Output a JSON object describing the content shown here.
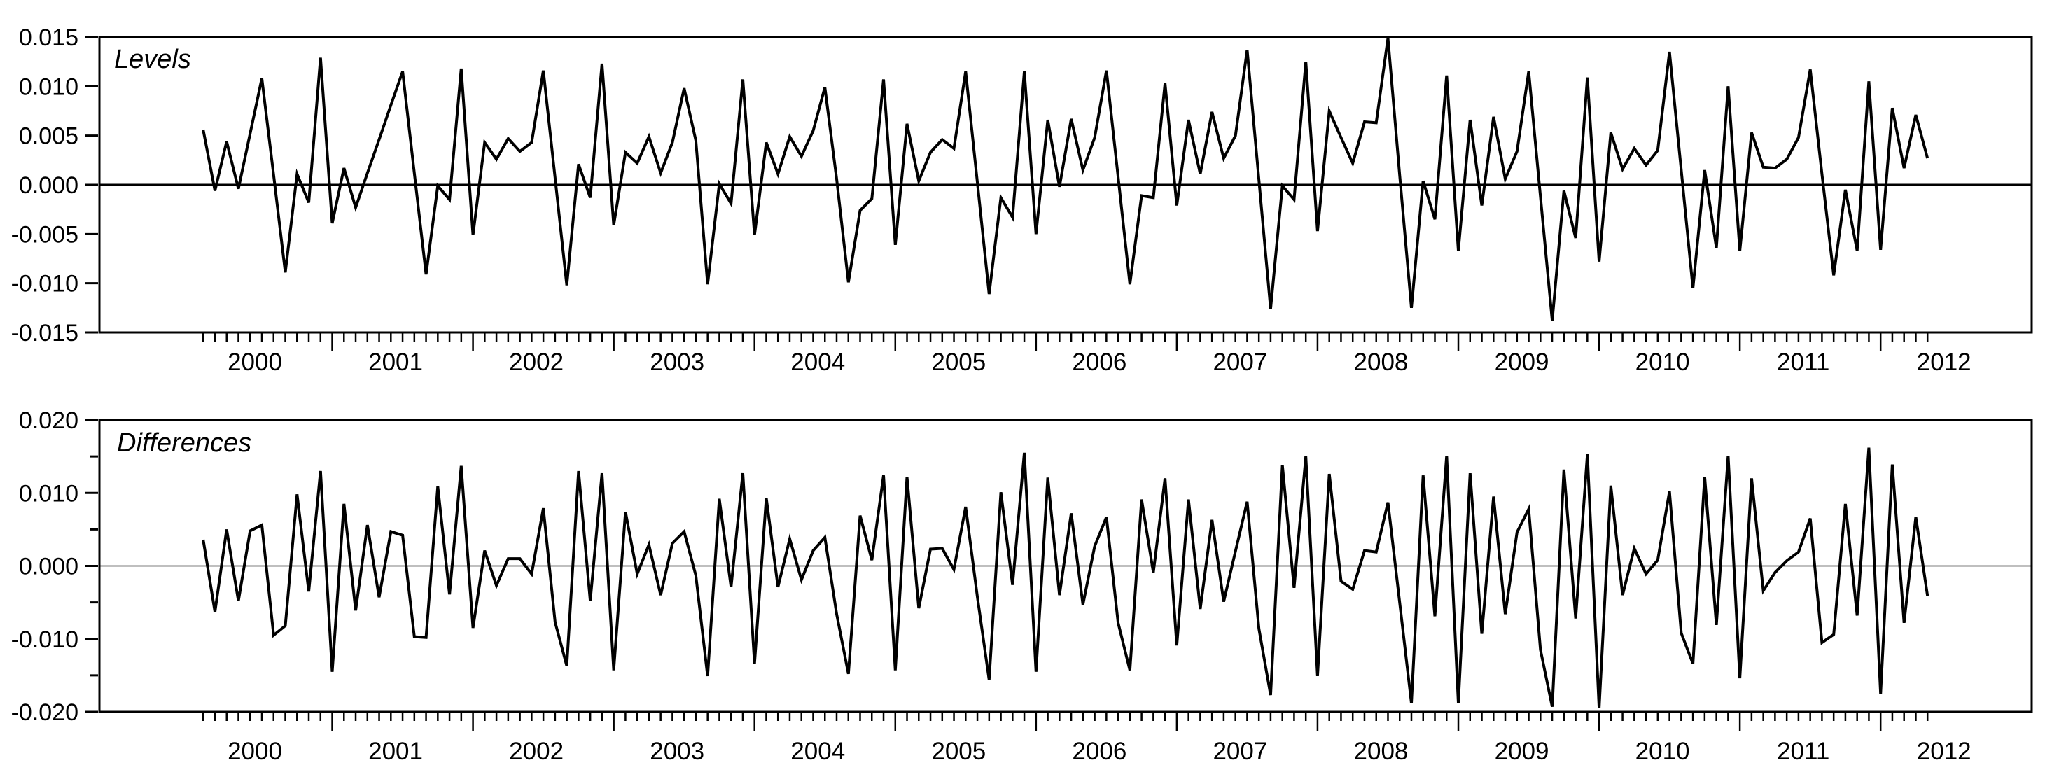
{
  "page": {
    "background_color": "#ffffff",
    "line_color": "#000000"
  },
  "chart_data": [
    {
      "type": "line",
      "title": "Levels",
      "x_unit": "month",
      "x_start": "1999M08",
      "x_end": "2011M11",
      "ylim": [
        -0.015,
        0.015
      ],
      "grid": "zero-line-only",
      "legend": "none",
      "y_tick_labels": [
        "0.015",
        "0.010",
        "0.005",
        "0.000",
        "-0.005",
        "-0.010",
        "-0.015"
      ],
      "x_tick_years": [
        "2000",
        "2001",
        "2002",
        "2003",
        "2004",
        "2005",
        "2006",
        "2007",
        "2008",
        "2009",
        "2010",
        "2011",
        "2012"
      ],
      "values": [
        0.0056,
        -0.0006,
        0.0044,
        -0.0004,
        0.0052,
        0.0108,
        0.001,
        -0.0089,
        0.0011,
        -0.0018,
        0.0129,
        -0.0039,
        0.0017,
        -0.0023,
        0.0012,
        0.0046,
        0.0081,
        0.0115,
        0.0012,
        -0.0091,
        -0.0001,
        -0.0015,
        0.0118,
        -0.0051,
        0.0043,
        0.0026,
        0.0047,
        0.0034,
        0.0043,
        0.0116,
        0.0007,
        -0.0102,
        0.0021,
        -0.0013,
        0.0123,
        -0.0041,
        0.0033,
        0.0022,
        0.0049,
        0.0012,
        0.0043,
        0.0098,
        0.0045,
        -0.0101,
        0.0001,
        -0.0019,
        0.0107,
        -0.0051,
        0.0043,
        0.0011,
        0.0049,
        0.0029,
        0.0055,
        0.0099,
        0.0006,
        -0.0099,
        -0.0026,
        -0.0014,
        0.0107,
        -0.0061,
        0.0062,
        0.0004,
        0.0033,
        0.0046,
        0.0037,
        0.0115,
        0.0002,
        -0.0111,
        -0.0013,
        -0.0033,
        0.0115,
        -0.005,
        0.0066,
        -0.0002,
        0.0067,
        0.0015,
        0.0048,
        0.0116,
        0.0008,
        -0.0101,
        -0.0011,
        -0.0013,
        0.0103,
        -0.0021,
        0.0066,
        0.0011,
        0.0074,
        0.0027,
        0.005,
        0.0137,
        0.0005,
        -0.0126,
        -0.0001,
        -0.0015,
        0.0125,
        -0.0047,
        0.0075,
        0.0048,
        0.0022,
        0.0064,
        0.0063,
        0.0149,
        0.001,
        -0.0125,
        0.0004,
        -0.0035,
        0.0111,
        -0.0067,
        0.0066,
        -0.0021,
        0.0069,
        0.0006,
        0.0034,
        0.0115,
        -0.0012,
        -0.0138,
        -0.0006,
        -0.0054,
        0.0109,
        -0.0078,
        0.0053,
        0.0016,
        0.0037,
        0.002,
        0.0035,
        0.0135,
        0.0015,
        -0.0105,
        0.0015,
        -0.0064,
        0.01,
        -0.0067,
        0.0053,
        0.0018,
        0.0017,
        0.0026,
        0.0048,
        0.0117,
        0.0011,
        -0.0092,
        -0.0005,
        -0.0067,
        0.0105,
        -0.0066,
        0.0078,
        0.0017,
        0.0071,
        0.0027
      ]
    },
    {
      "type": "line",
      "title": "Differences",
      "x_unit": "month",
      "x_start": "1999M08",
      "x_end": "2011M11",
      "ylim": [
        -0.02,
        0.02
      ],
      "grid": "zero-line-only",
      "legend": "none",
      "y_tick_labels": [
        "0.020",
        "0.010",
        "0.000",
        "-0.010",
        "-0.020"
      ],
      "y_minor_ticks": [
        0.015,
        0.005,
        -0.005,
        -0.015
      ],
      "x_tick_years": [
        "2000",
        "2001",
        "2002",
        "2003",
        "2004",
        "2005",
        "2006",
        "2007",
        "2008",
        "2009",
        "2010",
        "2011",
        "2012"
      ],
      "values": [
        0.0036,
        -0.0063,
        0.005,
        -0.0048,
        0.0048,
        0.0056,
        -0.0095,
        -0.0082,
        0.0098,
        -0.0035,
        0.013,
        -0.0145,
        0.0085,
        -0.0061,
        0.0056,
        -0.0043,
        0.0047,
        0.0042,
        -0.0097,
        -0.0098,
        0.0109,
        -0.0039,
        0.0137,
        -0.0085,
        0.0021,
        -0.0027,
        0.001,
        0.001,
        -0.0011,
        0.0079,
        -0.0077,
        -0.0137,
        0.013,
        -0.0048,
        0.0127,
        -0.0143,
        0.0074,
        -0.0011,
        0.0029,
        -0.004,
        0.0031,
        0.0047,
        -0.0013,
        -0.0151,
        0.0092,
        -0.0029,
        0.0127,
        -0.0134,
        0.0093,
        -0.0029,
        0.0037,
        -0.0019,
        0.0021,
        0.0039,
        -0.0066,
        -0.0148,
        0.0069,
        0.0008,
        0.0124,
        -0.0143,
        0.0122,
        -0.0058,
        0.0023,
        0.0024,
        -0.0005,
        0.0081,
        -0.0043,
        -0.0156,
        0.0101,
        -0.0026,
        0.0155,
        -0.0145,
        0.0121,
        -0.004,
        0.0072,
        -0.0053,
        0.0027,
        0.0067,
        -0.0078,
        -0.0143,
        0.0091,
        -0.0009,
        0.012,
        -0.0109,
        0.0091,
        -0.0059,
        0.0063,
        -0.0049,
        0.002,
        0.0088,
        -0.0086,
        -0.0177,
        0.0138,
        -0.003,
        0.015,
        -0.0151,
        0.0126,
        -0.0021,
        -0.0032,
        0.0021,
        0.0019,
        0.0087,
        -0.005,
        -0.0188,
        0.0124,
        -0.0069,
        0.0151,
        -0.0188,
        0.0127,
        -0.0093,
        0.0095,
        -0.0066,
        0.0046,
        0.0078,
        -0.0115,
        -0.0193,
        0.0132,
        -0.0072,
        0.0153,
        -0.0195,
        0.011,
        -0.004,
        0.0024,
        -0.0011,
        0.0008,
        0.0102,
        -0.0092,
        -0.0134,
        0.0122,
        -0.0081,
        0.0151,
        -0.0154,
        0.012,
        -0.0034,
        -0.0009,
        0.0007,
        0.0019,
        0.0065,
        -0.0105,
        -0.0094,
        0.0085,
        -0.0068,
        0.0162,
        -0.0175,
        0.0139,
        -0.0078,
        0.0067,
        -0.0041
      ]
    }
  ]
}
